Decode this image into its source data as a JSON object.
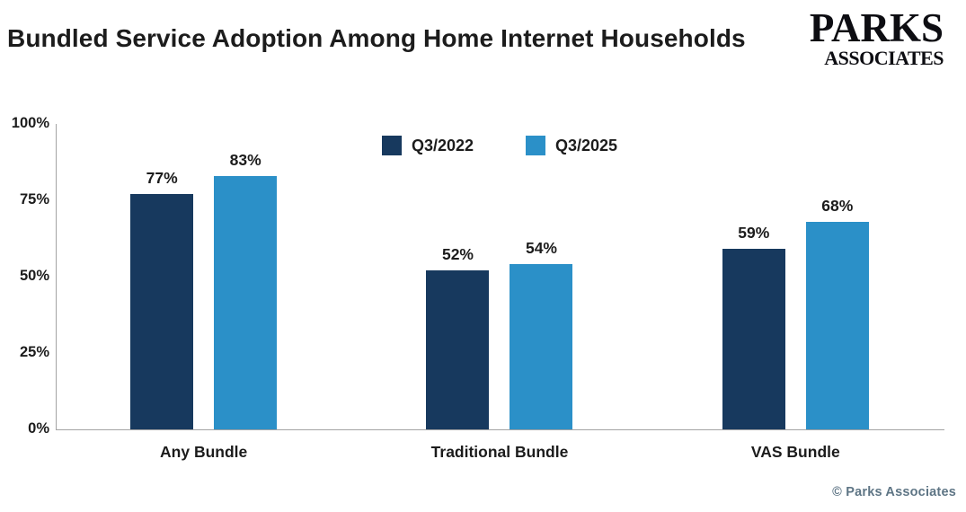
{
  "header": {
    "title": "Bundled Service Adoption Among Home Internet Households",
    "logo": {
      "line1": "PARKS",
      "line2": "ASSOCIATES"
    }
  },
  "footer": {
    "credit": "© Parks Associates"
  },
  "chart_data": {
    "type": "bar",
    "title": "Bundled Service Adoption Among Home Internet Households",
    "categories": [
      "Any Bundle",
      "Traditional Bundle",
      "VAS Bundle"
    ],
    "series": [
      {
        "name": "Q3/2022",
        "color": "#17395E",
        "values": [
          77,
          52,
          59
        ]
      },
      {
        "name": "Q3/2025",
        "color": "#2B90C8",
        "values": [
          83,
          54,
          68
        ]
      }
    ],
    "value_suffix": "%",
    "yticks": [
      "0%",
      "25%",
      "50%",
      "75%",
      "100%"
    ],
    "ylim": [
      0,
      100
    ],
    "grid": false,
    "legend_position": "top-center",
    "colors": {
      "axis": "#a3a3a3",
      "text": "#1c1c1c",
      "credit": "#5e7585"
    }
  }
}
